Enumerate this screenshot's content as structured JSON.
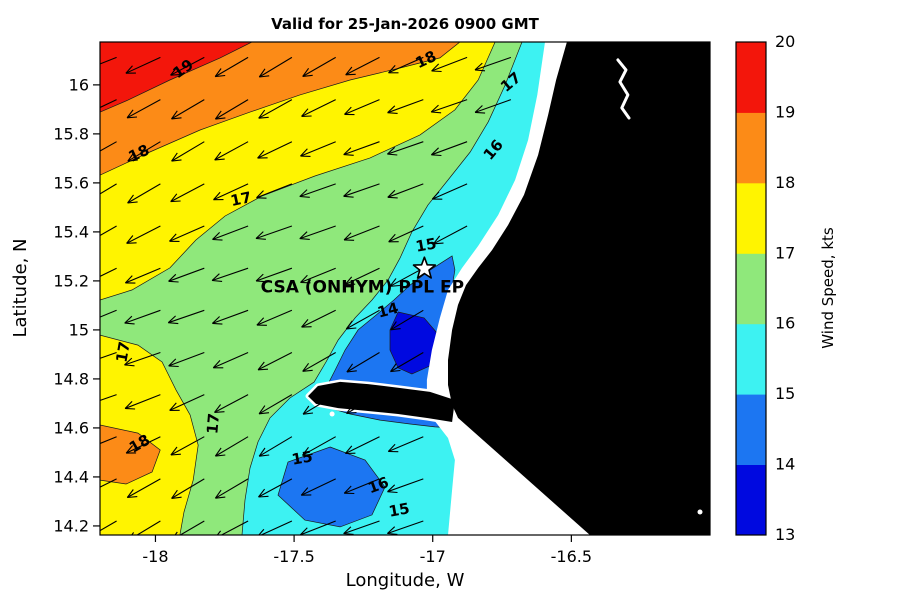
{
  "title": "Valid for 25-Jan-2026 0900 GMT",
  "xlabel": "Longitude, W",
  "ylabel": "Latitude, N",
  "colorbar": {
    "label": "Wind Speed, kts",
    "tick_labels_bottom_to_top": [
      "13",
      "14",
      "15",
      "16",
      "17",
      "18",
      "19",
      "20"
    ],
    "band_colors_bottom_to_top": [
      "#0009E0",
      "#1C76F2",
      "#3DF2F2",
      "#8FE87B",
      "#FFF400",
      "#FC8B17",
      "#F3160B"
    ]
  },
  "chart_data": {
    "type": "filled_contour_map",
    "variable": "Wind Speed",
    "units": "kts",
    "levels": [
      13,
      14,
      15,
      16,
      17,
      18,
      19,
      20
    ],
    "axes": {
      "xlim": [
        -18.2,
        -16.0
      ],
      "ylim": [
        14.163,
        16.175
      ],
      "x_ticks": [
        {
          "v": -18,
          "label": "-18"
        },
        {
          "v": -17.5,
          "label": "-17.5"
        },
        {
          "v": -17,
          "label": "-17"
        },
        {
          "v": -16.5,
          "label": "-16.5"
        }
      ],
      "y_ticks": [
        {
          "v": 16,
          "label": "16"
        },
        {
          "v": 15.8,
          "label": "15.8"
        },
        {
          "v": 15.6,
          "label": "15.6"
        },
        {
          "v": 15.4,
          "label": "15.4"
        },
        {
          "v": 15.2,
          "label": "15.2"
        },
        {
          "v": 15,
          "label": "15"
        },
        {
          "v": 14.8,
          "label": "14.8"
        },
        {
          "v": 14.6,
          "label": "14.6"
        },
        {
          "v": 14.4,
          "label": "14.4"
        },
        {
          "v": 14.2,
          "label": "14.2"
        }
      ]
    },
    "wind": {
      "direction_to_deg": 245,
      "description": "Northeasterly trade winds; arrows point toward the southwest"
    },
    "arrow_grid": {
      "lon_min": -18.14,
      "lon_step": 0.158,
      "cols": 12,
      "lat_min": 14.22,
      "lat_step": 0.172,
      "rows": 12
    },
    "station": {
      "label": "CSA (ONHYM) PPL EP",
      "lon": -17.03,
      "lat": 15.25
    },
    "regions": [
      {
        "name": "17-18 base",
        "low": 17,
        "points": [
          [
            -18.2,
            16.175
          ],
          [
            -16.0,
            16.175
          ],
          [
            -16.0,
            14.163
          ],
          [
            -18.2,
            14.163
          ]
        ]
      },
      {
        "name": "18-19 north band",
        "low": 18,
        "points": [
          [
            -18.2,
            16.175
          ],
          [
            -16.902,
            16.175
          ],
          [
            -16.974,
            16.11
          ],
          [
            -17.118,
            16.069
          ],
          [
            -17.298,
            16.02
          ],
          [
            -17.479,
            15.959
          ],
          [
            -17.659,
            15.889
          ],
          [
            -17.839,
            15.816
          ],
          [
            -18.02,
            15.726
          ],
          [
            -18.2,
            15.632
          ]
        ]
      },
      {
        "name": "19-20 northwest",
        "low": 19,
        "points": [
          [
            -18.2,
            16.175
          ],
          [
            -17.652,
            16.175
          ],
          [
            -17.767,
            16.11
          ],
          [
            -17.948,
            16.02
          ],
          [
            -18.099,
            15.938
          ],
          [
            -18.2,
            15.889
          ]
        ]
      },
      {
        "name": "18-19 southwest patch",
        "low": 18,
        "points": [
          [
            -18.2,
            14.612
          ],
          [
            -18.063,
            14.579
          ],
          [
            -17.983,
            14.51
          ],
          [
            -18.012,
            14.42
          ],
          [
            -18.106,
            14.371
          ],
          [
            -18.2,
            14.387
          ]
        ]
      },
      {
        "name": "16-17 central",
        "low": 16,
        "points": [
          [
            -16.775,
            16.175
          ],
          [
            -16.836,
            16.02
          ],
          [
            -16.92,
            15.898
          ],
          [
            -17.046,
            15.796
          ],
          [
            -17.226,
            15.702
          ],
          [
            -17.425,
            15.628
          ],
          [
            -17.616,
            15.546
          ],
          [
            -17.749,
            15.465
          ],
          [
            -17.854,
            15.367
          ],
          [
            -17.948,
            15.253
          ],
          [
            -18.085,
            15.163
          ],
          [
            -18.2,
            15.122
          ],
          [
            -18.2,
            14.979
          ],
          [
            -18.063,
            14.938
          ],
          [
            -17.976,
            14.869
          ],
          [
            -17.926,
            14.755
          ],
          [
            -17.875,
            14.653
          ],
          [
            -17.846,
            14.53
          ],
          [
            -17.864,
            14.387
          ],
          [
            -17.897,
            14.257
          ],
          [
            -17.912,
            14.163
          ],
          [
            -16.0,
            14.163
          ],
          [
            -16.0,
            16.175
          ]
        ]
      },
      {
        "name": "15-16 coastal",
        "low": 15,
        "points": [
          [
            -16.678,
            16.175
          ],
          [
            -16.739,
            15.999
          ],
          [
            -16.8,
            15.849
          ],
          [
            -16.865,
            15.726
          ],
          [
            -16.945,
            15.612
          ],
          [
            -17.017,
            15.51
          ],
          [
            -17.075,
            15.4
          ],
          [
            -17.118,
            15.293
          ],
          [
            -17.161,
            15.204
          ],
          [
            -17.219,
            15.122
          ],
          [
            -17.28,
            15.049
          ],
          [
            -17.341,
            14.959
          ],
          [
            -17.385,
            14.869
          ],
          [
            -17.428,
            14.787
          ],
          [
            -17.515,
            14.722
          ],
          [
            -17.587,
            14.641
          ],
          [
            -17.63,
            14.543
          ],
          [
            -17.659,
            14.436
          ],
          [
            -17.677,
            14.306
          ],
          [
            -17.688,
            14.163
          ],
          [
            -16.0,
            14.163
          ],
          [
            -16.0,
            16.175
          ]
        ]
      },
      {
        "name": "14-15 central",
        "low": 14,
        "points": [
          [
            -16.93,
            15.302
          ],
          [
            -17.01,
            15.244
          ],
          [
            -17.082,
            15.183
          ],
          [
            -17.14,
            15.122
          ],
          [
            -17.204,
            15.061
          ],
          [
            -17.269,
            15.0
          ],
          [
            -17.316,
            14.918
          ],
          [
            -17.352,
            14.836
          ],
          [
            -17.385,
            14.763
          ],
          [
            -17.399,
            14.722
          ],
          [
            -17.37,
            14.681
          ],
          [
            -17.298,
            14.657
          ],
          [
            -17.19,
            14.632
          ],
          [
            -17.082,
            14.616
          ],
          [
            -16.992,
            14.604
          ],
          [
            -16.93,
            14.6
          ],
          [
            -16.92,
            14.755
          ],
          [
            -16.945,
            14.959
          ],
          [
            -16.938,
            15.122
          ],
          [
            -16.92,
            15.245
          ]
        ]
      },
      {
        "name": "14-15 south",
        "low": 14,
        "points": [
          [
            -17.37,
            14.522
          ],
          [
            -17.244,
            14.469
          ],
          [
            -17.172,
            14.359
          ],
          [
            -17.219,
            14.245
          ],
          [
            -17.334,
            14.196
          ],
          [
            -17.461,
            14.224
          ],
          [
            -17.558,
            14.326
          ],
          [
            -17.522,
            14.461
          ]
        ]
      },
      {
        "name": "13-14 nearshore",
        "low": 13,
        "points": [
          [
            -17.125,
            15.073
          ],
          [
            -17.031,
            15.049
          ],
          [
            -16.988,
            14.992
          ],
          [
            -16.981,
            14.918
          ],
          [
            -17.01,
            14.853
          ],
          [
            -17.075,
            14.82
          ],
          [
            -17.125,
            14.845
          ],
          [
            -17.154,
            14.918
          ],
          [
            -17.154,
            15.0
          ]
        ]
      }
    ],
    "contour_labels": [
      {
        "text": "19",
        "lon": -17.89,
        "lat": 16.049,
        "rot": -35
      },
      {
        "text": "18",
        "lon": -17.017,
        "lat": 16.085,
        "rot": -25
      },
      {
        "text": "17",
        "lon": -16.707,
        "lat": 15.996,
        "rot": -40
      },
      {
        "text": "18",
        "lon": -18.052,
        "lat": 15.702,
        "rot": -25
      },
      {
        "text": "16",
        "lon": -16.768,
        "lat": 15.722,
        "rot": -50
      },
      {
        "text": "17",
        "lon": -17.688,
        "lat": 15.514,
        "rot": -12
      },
      {
        "text": "15",
        "lon": -17.021,
        "lat": 15.326,
        "rot": -10
      },
      {
        "text": "14",
        "lon": -17.157,
        "lat": 15.061,
        "rot": -15
      },
      {
        "text": "17",
        "lon": -18.099,
        "lat": 14.906,
        "rot": -80
      },
      {
        "text": "17",
        "lon": -17.774,
        "lat": 14.616,
        "rot": -85
      },
      {
        "text": "18",
        "lon": -18.048,
        "lat": 14.518,
        "rot": -30
      },
      {
        "text": "15",
        "lon": -17.468,
        "lat": 14.457,
        "rot": -10
      },
      {
        "text": "16",
        "lon": -17.19,
        "lat": 14.347,
        "rot": -20
      },
      {
        "text": "15",
        "lon": -17.118,
        "lat": 14.245,
        "rot": -10
      }
    ],
    "nodata_region": {
      "points": [
        [
          -16.595,
          16.175
        ],
        [
          -16.0,
          16.175
        ],
        [
          -16.0,
          14.163
        ],
        [
          -16.945,
          14.163
        ],
        [
          -16.93,
          14.347
        ],
        [
          -16.92,
          14.469
        ],
        [
          -16.945,
          14.559
        ],
        [
          -16.995,
          14.632
        ],
        [
          -17.021,
          14.714
        ],
        [
          -17.021,
          14.796
        ],
        [
          -17.003,
          14.918
        ],
        [
          -16.974,
          15.049
        ],
        [
          -16.945,
          15.163
        ],
        [
          -16.894,
          15.253
        ],
        [
          -16.836,
          15.343
        ],
        [
          -16.764,
          15.469
        ],
        [
          -16.703,
          15.612
        ],
        [
          -16.656,
          15.775
        ],
        [
          -16.623,
          15.959
        ]
      ]
    },
    "land": {
      "points": [
        [
          -16.516,
          16.175
        ],
        [
          -16.555,
          16.02
        ],
        [
          -16.584,
          15.877
        ],
        [
          -16.62,
          15.714
        ],
        [
          -16.671,
          15.551
        ],
        [
          -16.728,
          15.428
        ],
        [
          -16.786,
          15.326
        ],
        [
          -16.836,
          15.253
        ],
        [
          -16.88,
          15.183
        ],
        [
          -16.909,
          15.102
        ],
        [
          -16.93,
          15.0
        ],
        [
          -16.945,
          14.877
        ],
        [
          -16.945,
          14.775
        ],
        [
          -16.93,
          14.694
        ],
        [
          -16.909,
          14.641
        ],
        [
          -16.433,
          14.163
        ],
        [
          -16.0,
          14.163
        ],
        [
          -16.0,
          16.175
        ]
      ]
    },
    "peninsula": {
      "points": [
        [
          -16.92,
          14.714
        ],
        [
          -17.01,
          14.747
        ],
        [
          -17.118,
          14.763
        ],
        [
          -17.233,
          14.779
        ],
        [
          -17.334,
          14.788
        ],
        [
          -17.414,
          14.771
        ],
        [
          -17.45,
          14.73
        ],
        [
          -17.421,
          14.698
        ],
        [
          -17.341,
          14.681
        ],
        [
          -17.233,
          14.669
        ],
        [
          -17.125,
          14.657
        ],
        [
          -17.017,
          14.64
        ],
        [
          -16.93,
          14.624
        ]
      ]
    },
    "river": {
      "points": [
        [
          -16.332,
          16.102
        ],
        [
          -16.303,
          16.061
        ],
        [
          -16.325,
          16.012
        ],
        [
          -16.296,
          15.959
        ],
        [
          -16.318,
          15.906
        ],
        [
          -16.292,
          15.865
        ]
      ]
    },
    "islets": [
      [
        -16.036,
        14.257
      ],
      [
        -17.363,
        14.657
      ]
    ]
  }
}
